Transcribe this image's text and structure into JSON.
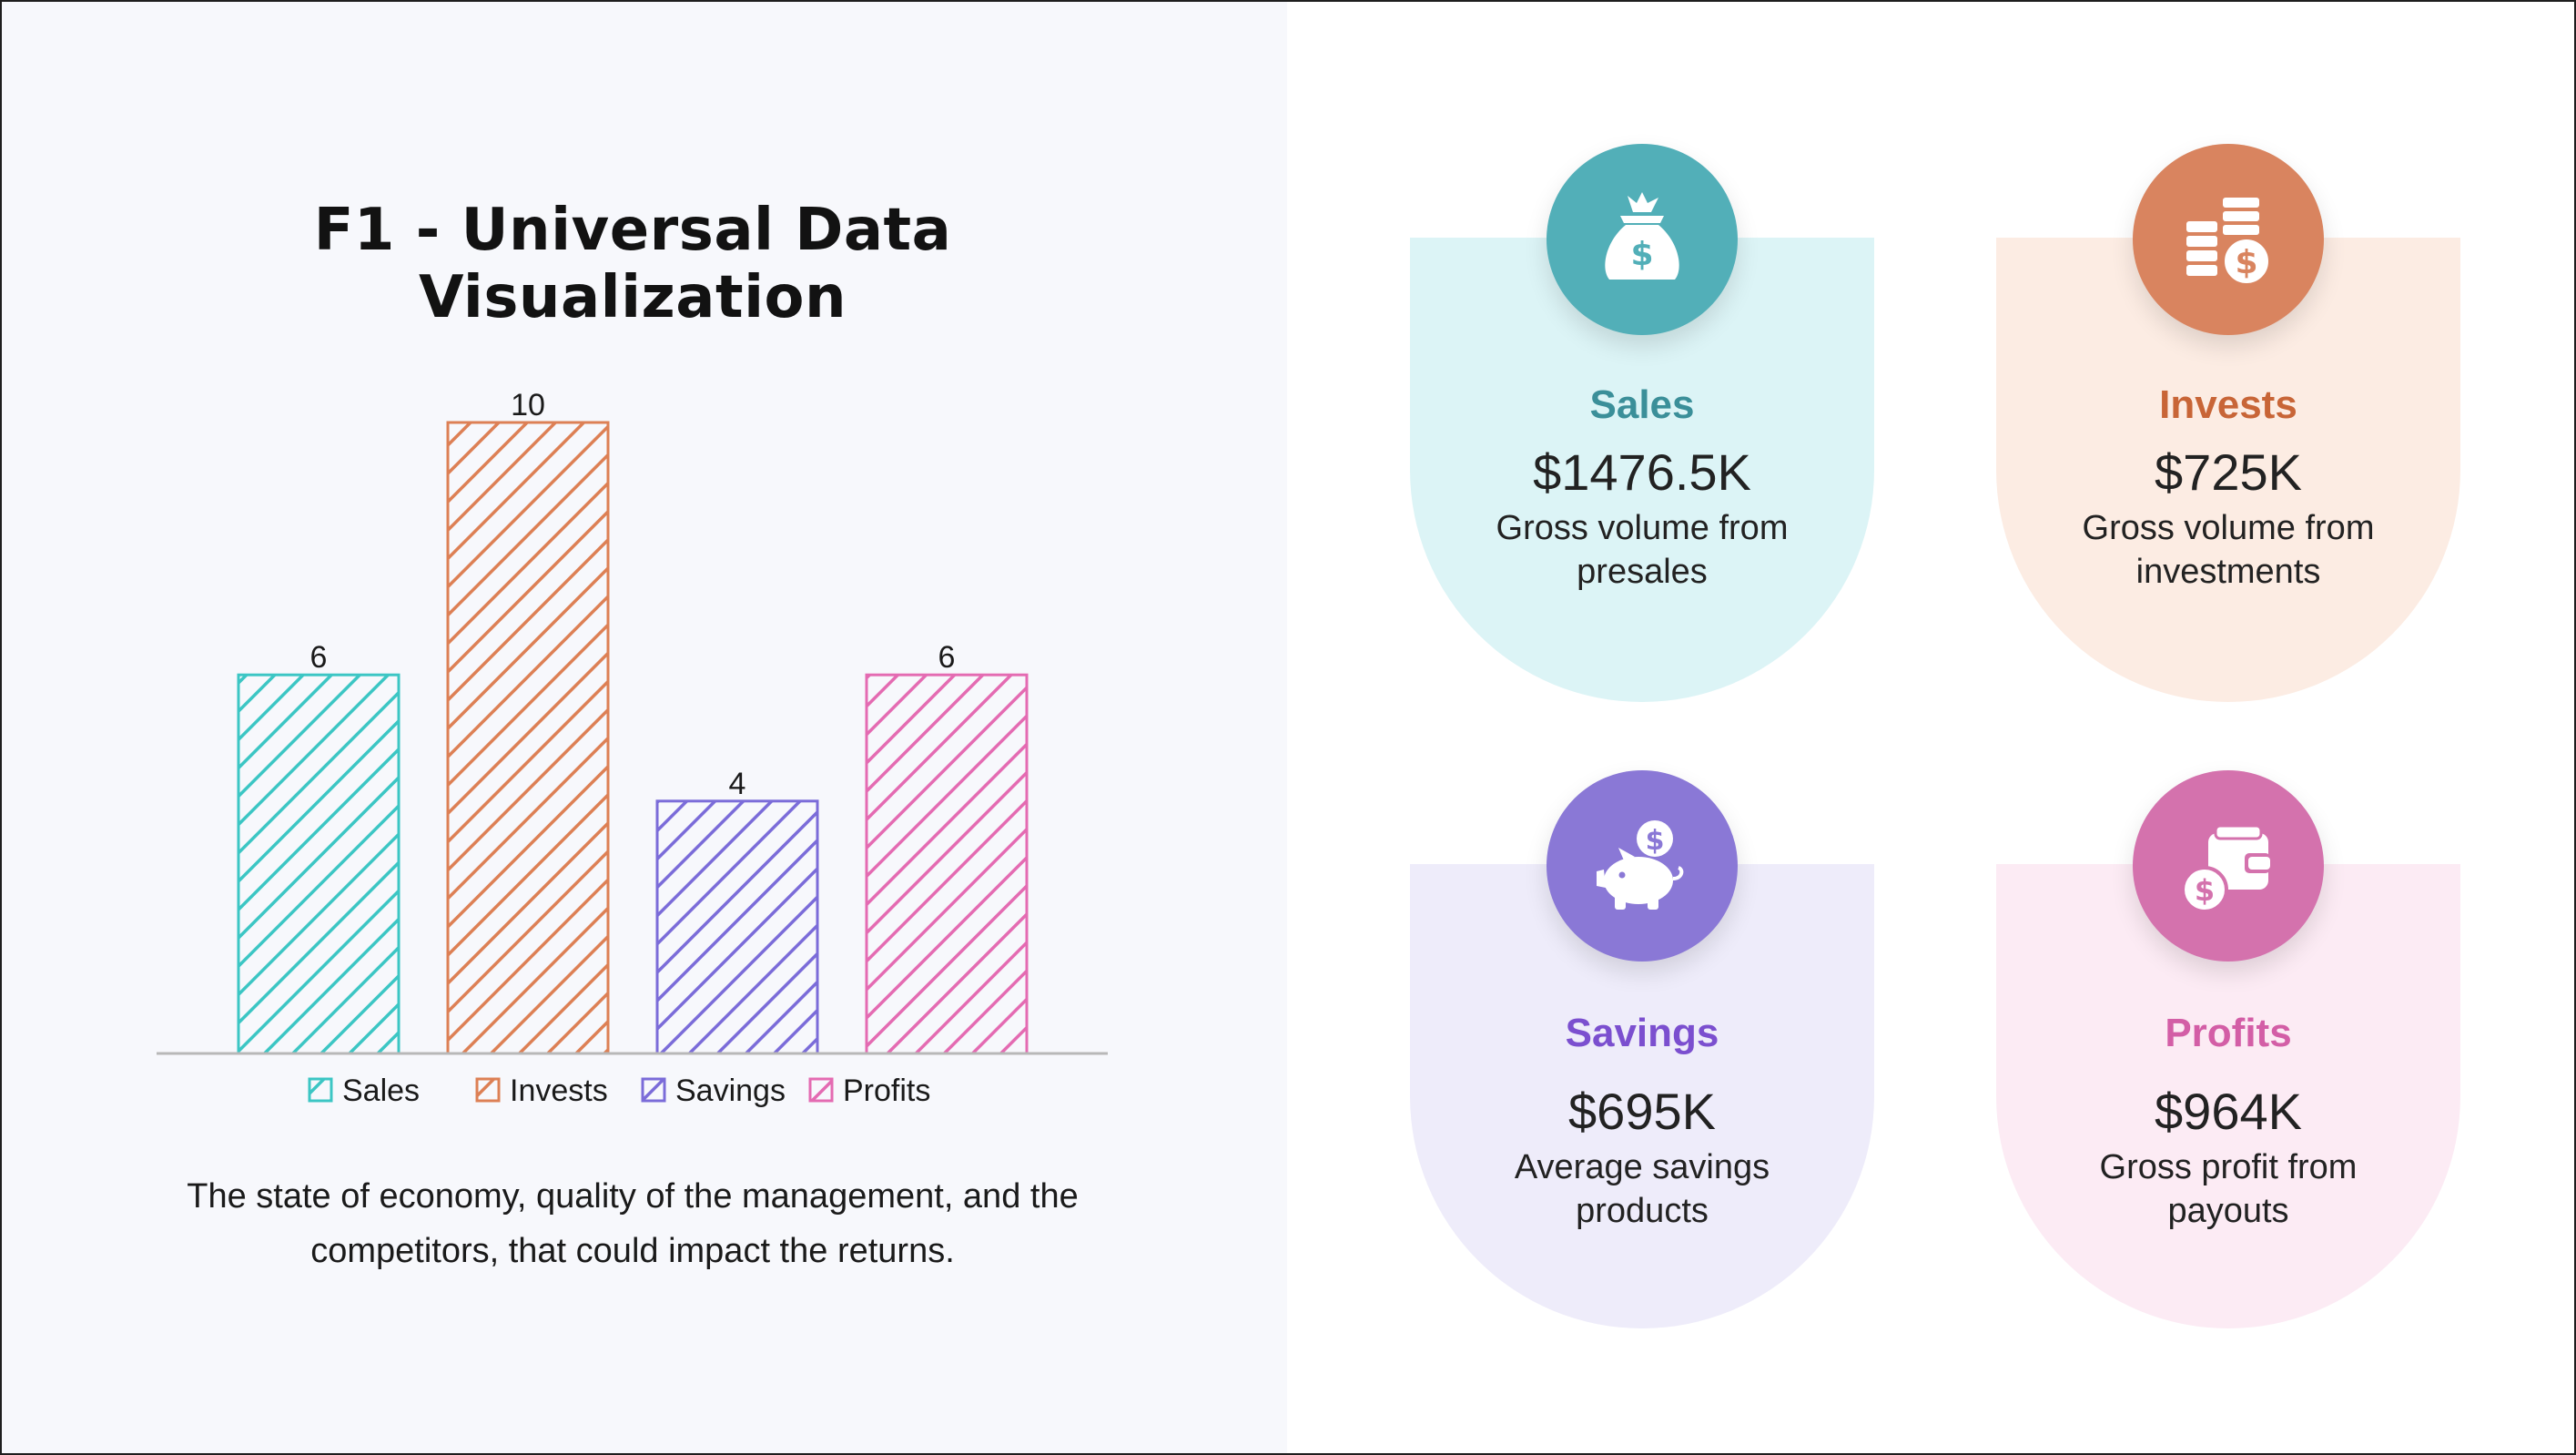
{
  "title": "F1 - Universal Data Visualization",
  "caption": "The state of economy, quality of the management, and the competitors, that could impact the returns.",
  "chart_data": {
    "type": "bar",
    "title": "",
    "categories": [
      "Sales",
      "Invests",
      "Savings",
      "Profits"
    ],
    "values": [
      6,
      10,
      4,
      6
    ],
    "data_labels": [
      "6",
      "10",
      "4",
      "6"
    ],
    "colors": [
      "#3cc6c4",
      "#dd8055",
      "#7b6cd9",
      "#e46bb2"
    ],
    "ylim": [
      0,
      10
    ],
    "grid": false,
    "legend": "bottom",
    "pattern": "diagonal-hatch"
  },
  "cards": [
    {
      "title": "Sales",
      "value": "$1476.5K",
      "desc_line1": "Gross volume from",
      "desc_line2": "presales",
      "icon": "money-bag-icon",
      "accent": "#52afb8",
      "title_color": "#3b8f99",
      "bg": "#dcf4f6"
    },
    {
      "title": "Invests",
      "value": "$725K",
      "desc_line1": "Gross volume from",
      "desc_line2": "investments",
      "icon": "coin-stack-icon",
      "accent": "#d9845f",
      "title_color": "#c86537",
      "bg": "#fcece3"
    },
    {
      "title": "Savings",
      "value": "$695K",
      "desc_line1": "Average savings",
      "desc_line2": "products",
      "icon": "piggy-bank-icon",
      "accent": "#8a78d6",
      "title_color": "#7b4fcf",
      "bg": "#eeecfa"
    },
    {
      "title": "Profits",
      "value": "$964K",
      "desc_line1": "Gross profit from",
      "desc_line2": "payouts",
      "icon": "wallet-icon",
      "accent": "#d472ad",
      "title_color": "#d35ea6",
      "bg": "#fcebf4"
    }
  ]
}
